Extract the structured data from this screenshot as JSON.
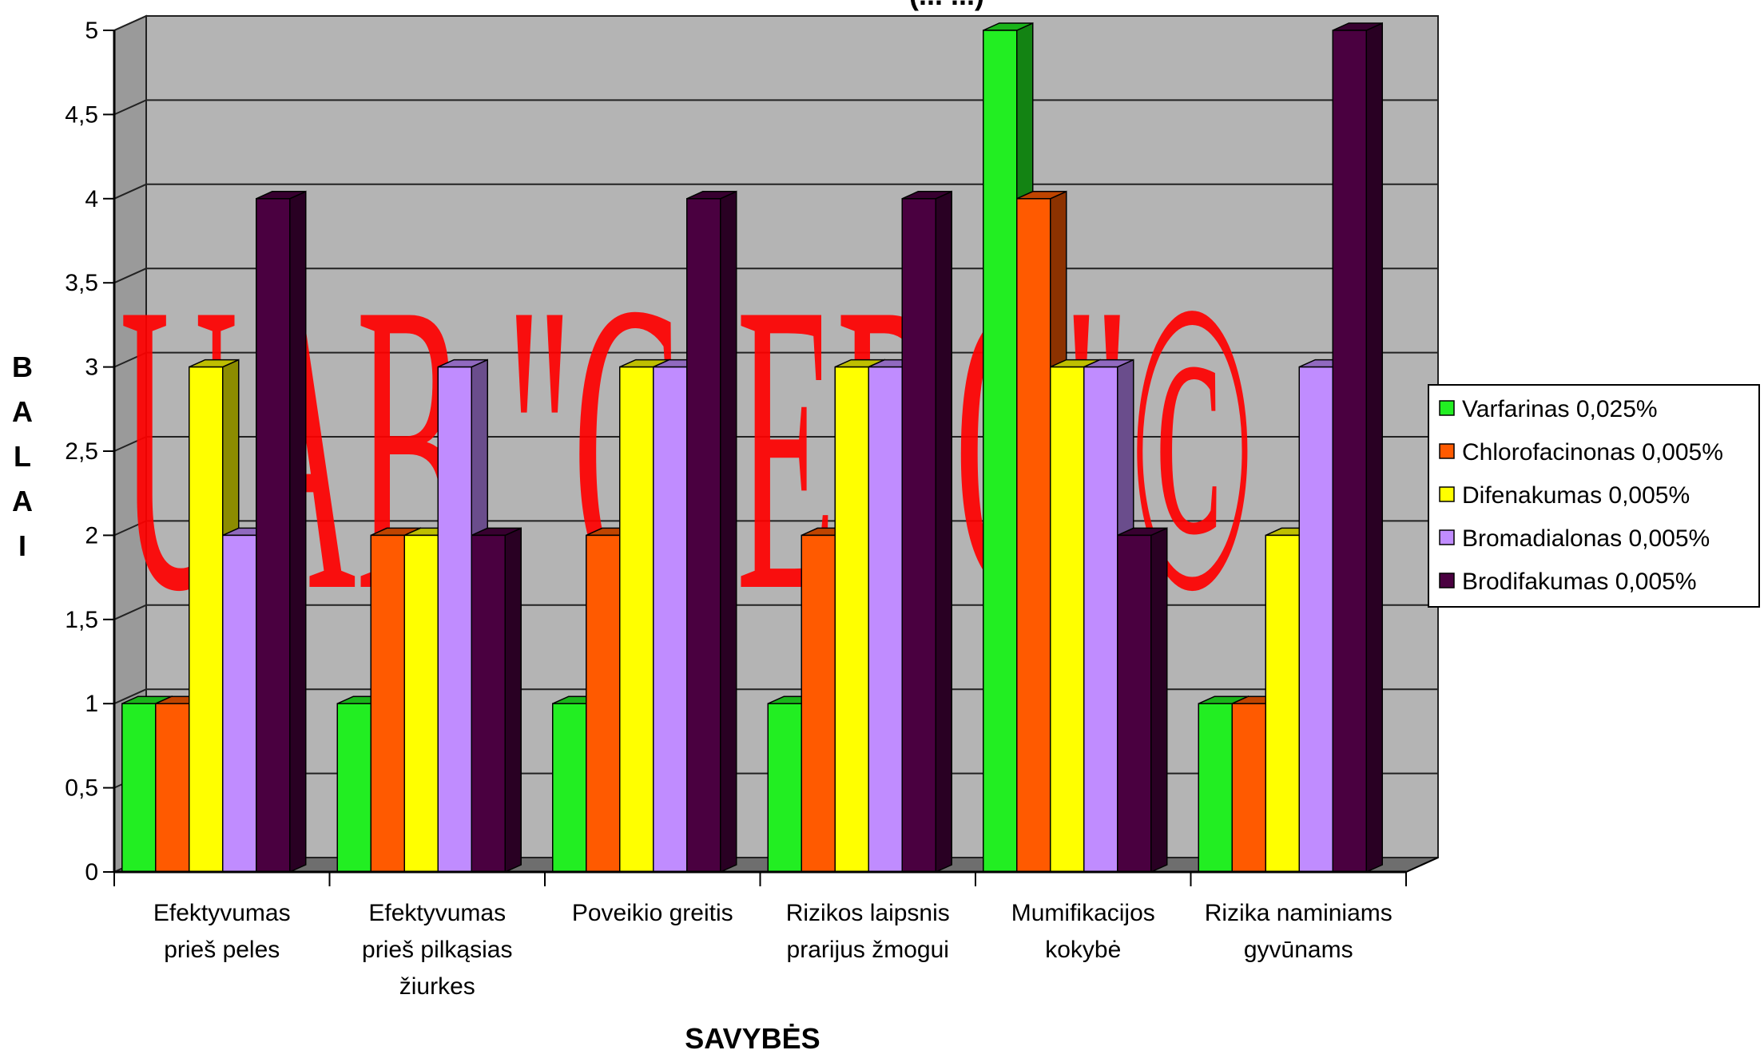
{
  "chart_data": {
    "type": "bar",
    "title": "(... ...)",
    "xlabel": "SAVYBĖS",
    "ylabel": "BALAI",
    "ylim": [
      0,
      5
    ],
    "yticks": [
      "0",
      "0,5",
      "1",
      "1,5",
      "2",
      "2,5",
      "3",
      "3,5",
      "4",
      "4,5",
      "5"
    ],
    "grid": true,
    "legend_position": "right",
    "categories": [
      [
        "Efektyvumas",
        "prieš peles"
      ],
      [
        "Efektyvumas",
        "prieš pilkąsias",
        "žiurkes"
      ],
      [
        "Poveikio greitis"
      ],
      [
        "Rizikos laipsnis",
        "prarijus žmogui"
      ],
      [
        "Mumifikacijos",
        "kokybė"
      ],
      [
        "Rizika naminiams",
        "gyvūnams"
      ]
    ],
    "series": [
      {
        "name": "Varfarinas 0,025%",
        "color": "#22ee22",
        "values": [
          1,
          1,
          1,
          1,
          5,
          1
        ]
      },
      {
        "name": "Chlorofacinonas 0,005%",
        "color": "#ff5a00",
        "values": [
          1,
          2,
          2,
          2,
          4,
          1
        ]
      },
      {
        "name": "Difenakumas 0,005%",
        "color": "#ffff00",
        "values": [
          3,
          2,
          3,
          3,
          3,
          2
        ]
      },
      {
        "name": "Bromadialonas 0,005%",
        "color": "#c08cff",
        "values": [
          2,
          3,
          3,
          3,
          3,
          3
        ]
      },
      {
        "name": "Brodifakumas 0,005%",
        "color": "#4a0040",
        "values": [
          4,
          2,
          4,
          4,
          2,
          5
        ]
      }
    ],
    "watermark": "UAB \"CIEDC\"©"
  }
}
